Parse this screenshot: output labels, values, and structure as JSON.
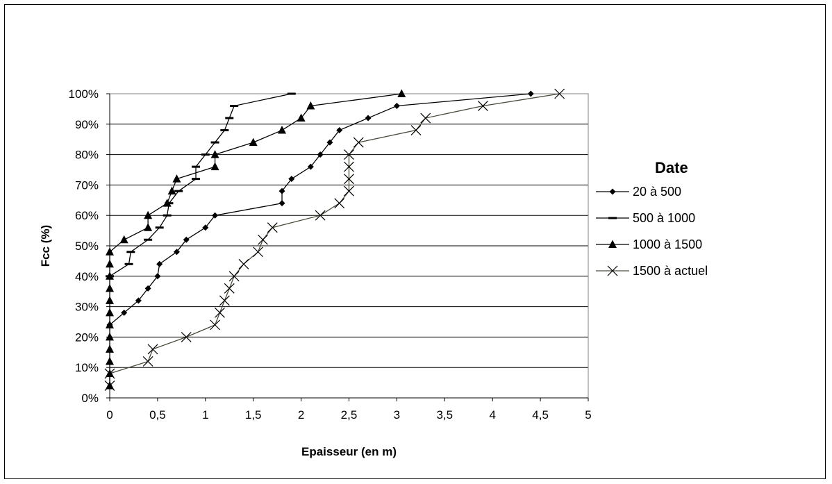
{
  "chart_data": {
    "type": "line",
    "title": "",
    "xlabel": "Epaisseur (en m)",
    "ylabel": "Fcc (%)",
    "xlim": [
      0,
      5
    ],
    "ylim": [
      0,
      100
    ],
    "x_ticks": [
      "0",
      "0,5",
      "1",
      "1,5",
      "2",
      "2,5",
      "3",
      "3,5",
      "4",
      "4,5",
      "5"
    ],
    "y_ticks": [
      "0%",
      "10%",
      "20%",
      "30%",
      "40%",
      "50%",
      "60%",
      "70%",
      "80%",
      "90%",
      "100%"
    ],
    "grid": "horizontal",
    "legend": {
      "title": "Date",
      "position": "right"
    },
    "series": [
      {
        "name": "20 à 500",
        "marker": "diamond",
        "color": "#000000",
        "points": [
          [
            0,
            24
          ],
          [
            0.15,
            28
          ],
          [
            0.3,
            32
          ],
          [
            0.4,
            36
          ],
          [
            0.5,
            40
          ],
          [
            0.52,
            44
          ],
          [
            0.7,
            48
          ],
          [
            0.8,
            52
          ],
          [
            1.0,
            56
          ],
          [
            1.1,
            60
          ],
          [
            1.8,
            64
          ],
          [
            1.8,
            68
          ],
          [
            1.9,
            72
          ],
          [
            2.1,
            76
          ],
          [
            2.2,
            80
          ],
          [
            2.3,
            84
          ],
          [
            2.4,
            88
          ],
          [
            2.7,
            92
          ],
          [
            3.0,
            96
          ],
          [
            4.4,
            100
          ]
        ]
      },
      {
        "name": "500 à 1000",
        "marker": "dash",
        "color": "#000000",
        "points": [
          [
            0,
            40
          ],
          [
            0.2,
            44
          ],
          [
            0.22,
            48
          ],
          [
            0.4,
            52
          ],
          [
            0.52,
            56
          ],
          [
            0.6,
            60
          ],
          [
            0.62,
            64
          ],
          [
            0.72,
            68
          ],
          [
            0.9,
            72
          ],
          [
            0.9,
            76
          ],
          [
            1.0,
            80
          ],
          [
            1.1,
            84
          ],
          [
            1.2,
            88
          ],
          [
            1.25,
            92
          ],
          [
            1.3,
            96
          ],
          [
            1.9,
            100
          ]
        ]
      },
      {
        "name": "1000 à 1500",
        "marker": "triangle",
        "color": "#000000",
        "points": [
          [
            0,
            4
          ],
          [
            0,
            8
          ],
          [
            0,
            12
          ],
          [
            0,
            16
          ],
          [
            0,
            20
          ],
          [
            0,
            24
          ],
          [
            0,
            28
          ],
          [
            0,
            32
          ],
          [
            0,
            36
          ],
          [
            0,
            40
          ],
          [
            0,
            44
          ],
          [
            0,
            48
          ],
          [
            0.15,
            52
          ],
          [
            0.4,
            56
          ],
          [
            0.4,
            60
          ],
          [
            0.6,
            64
          ],
          [
            0.65,
            68
          ],
          [
            0.7,
            72
          ],
          [
            1.1,
            76
          ],
          [
            1.1,
            80
          ],
          [
            1.5,
            84
          ],
          [
            1.8,
            88
          ],
          [
            2.0,
            92
          ],
          [
            2.1,
            96
          ],
          [
            3.05,
            100
          ]
        ]
      },
      {
        "name": "1500 à actuel",
        "marker": "x",
        "color": "#4a4a3a",
        "points": [
          [
            0,
            4
          ],
          [
            0,
            8
          ],
          [
            0.4,
            12
          ],
          [
            0.45,
            16
          ],
          [
            0.8,
            20
          ],
          [
            1.1,
            24
          ],
          [
            1.15,
            28
          ],
          [
            1.2,
            32
          ],
          [
            1.25,
            36
          ],
          [
            1.3,
            40
          ],
          [
            1.4,
            44
          ],
          [
            1.55,
            48
          ],
          [
            1.6,
            52
          ],
          [
            1.7,
            56
          ],
          [
            2.2,
            60
          ],
          [
            2.4,
            64
          ],
          [
            2.5,
            68
          ],
          [
            2.5,
            72
          ],
          [
            2.5,
            76
          ],
          [
            2.5,
            80
          ],
          [
            2.6,
            84
          ],
          [
            3.2,
            88
          ],
          [
            3.3,
            92
          ],
          [
            3.9,
            96
          ],
          [
            4.7,
            100
          ]
        ]
      }
    ]
  }
}
